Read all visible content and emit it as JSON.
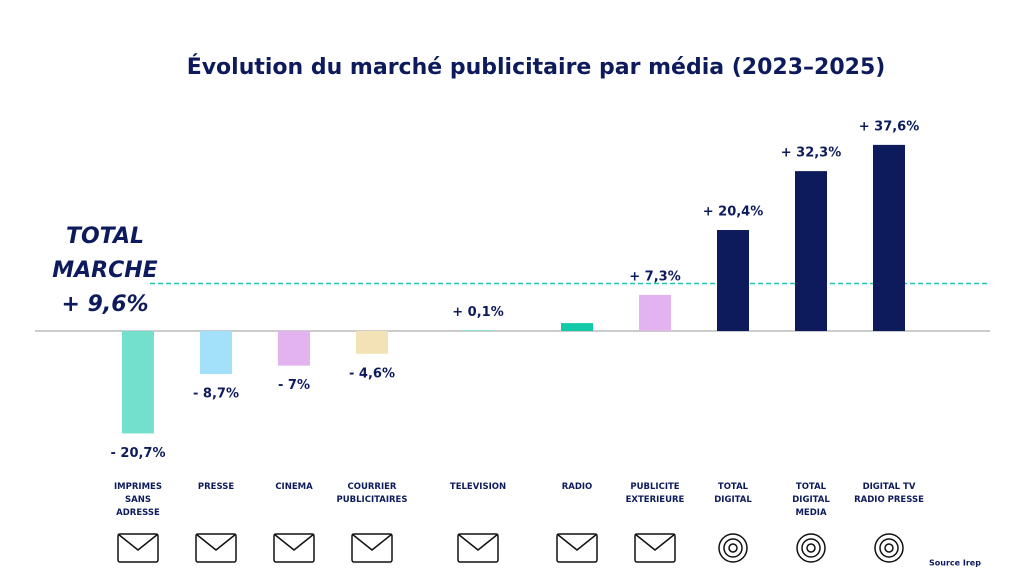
{
  "chart_data": {
    "type": "bar",
    "title": "Évolution du marché publicitaire par média (2023–2025)",
    "categories": [
      "IMPRIMES SANS ADRESSE",
      "PRESSE",
      "CINEMA",
      "COURRIER PUBLICITAIRES",
      "TELEVISION",
      "RADIO",
      "PUBLICITE EXTERIEURE",
      "TOTAL DIGITAL",
      "TOTAL DIGITAL MEDIA",
      "DIGITAL TV RADIO PRESSE"
    ],
    "values": [
      -20.7,
      -8.7,
      -7,
      -4.6,
      0.1,
      1.6,
      7.3,
      20.4,
      32.3,
      37.6
    ],
    "value_labels": [
      "- 20,7%",
      "- 8,7%",
      "- 7%",
      "- 4,6%",
      "+ 0,1%",
      null,
      "+ 7,3%",
      "+ 20,4%",
      "+ 32,3%",
      "+ 37,6%"
    ],
    "colors": [
      "#72e0cc",
      "#a3e1fb",
      "#e2b3ee",
      "#f2e2b5",
      "#14c9a8",
      "#14c9a8",
      "#e2b3ee",
      "#0d1b5c",
      "#0d1b5c",
      "#0d1b5c"
    ],
    "total": {
      "label_lines": [
        "TOTAL",
        "MARCHE"
      ],
      "value": 9.6,
      "value_label": "+ 9,6%",
      "color": "#22c5b0"
    },
    "source": "Source Irep"
  }
}
